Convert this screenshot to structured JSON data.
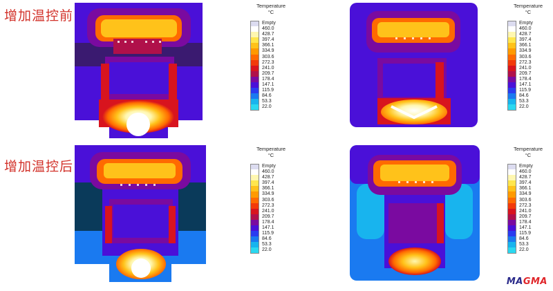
{
  "labels": {
    "before": "增加温控前",
    "after": "增加温控后"
  },
  "legend": {
    "title": "Temperature",
    "unit": "°C",
    "entries": [
      {
        "label": "Empty",
        "color": "#dcdcf0"
      },
      {
        "label": "460.0",
        "color": "#ffffff"
      },
      {
        "label": "428.7",
        "color": "#fff7b0"
      },
      {
        "label": "397.4",
        "color": "#ffe64d"
      },
      {
        "label": "366.1",
        "color": "#ffc21a"
      },
      {
        "label": "334.9",
        "color": "#ff9a00"
      },
      {
        "label": "303.6",
        "color": "#ff6a00"
      },
      {
        "label": "272.3",
        "color": "#f23a0a"
      },
      {
        "label": "241.0",
        "color": "#d8141e"
      },
      {
        "label": "209.7",
        "color": "#b0104a"
      },
      {
        "label": "178.4",
        "color": "#7a0aa0"
      },
      {
        "label": "147.1",
        "color": "#4a10d8"
      },
      {
        "label": "115.9",
        "color": "#2a3cf0"
      },
      {
        "label": "84.6",
        "color": "#1a7af0"
      },
      {
        "label": "53.3",
        "color": "#18b4ee"
      },
      {
        "label": "22.0",
        "color": "#2ad8f0"
      }
    ]
  },
  "logo": {
    "text_a": "MA",
    "text_b": "GMA"
  }
}
